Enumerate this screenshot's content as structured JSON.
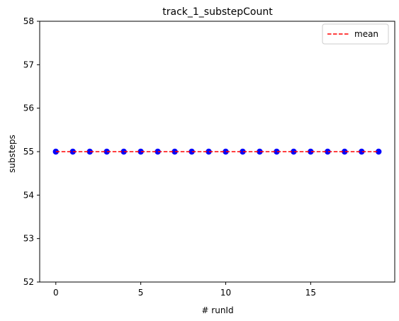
{
  "chart_data": {
    "type": "scatter",
    "title": "track_1_substepCount",
    "xlabel": "# runId",
    "ylabel": "substeps",
    "xlim": [
      -0.95,
      19.95
    ],
    "ylim": [
      52.0,
      58.0
    ],
    "x_ticks": [
      0,
      5,
      10,
      15
    ],
    "y_ticks": [
      52,
      53,
      54,
      55,
      56,
      57,
      58
    ],
    "grid": false,
    "legend_position": "top-right",
    "series": [
      {
        "kind": "points",
        "color": "#0000ff",
        "marker": "circle",
        "x": [
          0,
          1,
          2,
          3,
          4,
          5,
          6,
          7,
          8,
          9,
          10,
          11,
          12,
          13,
          14,
          15,
          16,
          17,
          18,
          19
        ],
        "y": [
          55,
          55,
          55,
          55,
          55,
          55,
          55,
          55,
          55,
          55,
          55,
          55,
          55,
          55,
          55,
          55,
          55,
          55,
          55,
          55
        ]
      },
      {
        "name": "mean",
        "kind": "line",
        "color": "#ff0000",
        "line_style": "dashed",
        "x": [
          0,
          19
        ],
        "y": [
          55,
          55
        ]
      }
    ]
  }
}
